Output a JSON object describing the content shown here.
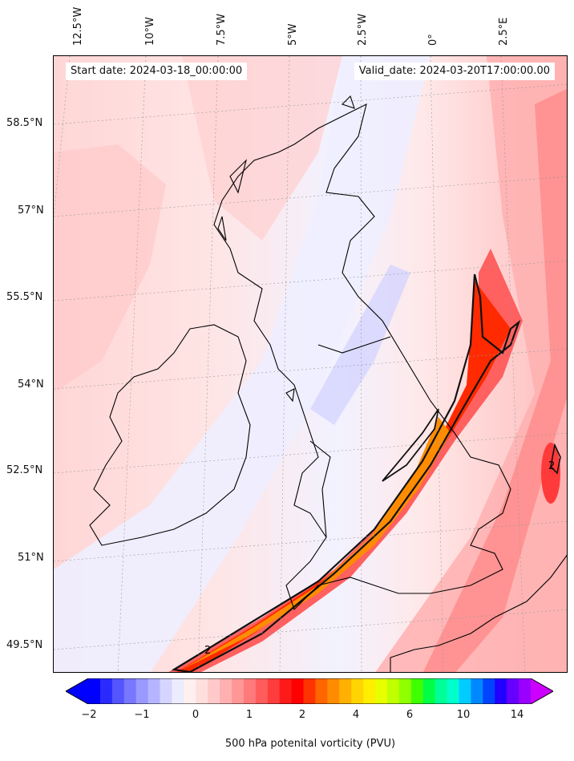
{
  "map": {
    "start_date": "Start date: 2024-03-18_00:00:00",
    "valid_date": "Valid_date: 2024-03-20T17:00:00.00",
    "field": "500 hPa potenital vorticity (PVU)",
    "contour_label": "2",
    "region": "British Isles and north-west Europe",
    "longitude_labels": [
      "12.5°W",
      "10°W",
      "7.5°W",
      "5°W",
      "2.5°W",
      "0°",
      "2.5°E"
    ],
    "latitude_labels": [
      "58.5°N",
      "57°N",
      "55.5°N",
      "54°N",
      "52.5°N",
      "51°N",
      "49.5°N"
    ]
  },
  "colorbar": {
    "tick_labels": [
      "−2",
      "−1",
      "0",
      "1",
      "2",
      "4",
      "6",
      "10",
      "14"
    ],
    "colors": [
      "#0000ff",
      "#2a2aff",
      "#5555ff",
      "#7777ff",
      "#9999ff",
      "#b5b5ff",
      "#d5d5ff",
      "#ececff",
      "#ffefef",
      "#ffdede",
      "#ffc9c9",
      "#ffb0b0",
      "#ff9797",
      "#ff7a7a",
      "#ff5c5c",
      "#ff3d3d",
      "#ff1a1a",
      "#ff0000",
      "#ff3300",
      "#ff6600",
      "#ff8c00",
      "#ffb000",
      "#ffd400",
      "#ffee00",
      "#e8ff00",
      "#c0ff00",
      "#90ff00",
      "#40ff00",
      "#00ff44",
      "#00ff99",
      "#00ffcc",
      "#00ccff",
      "#0088ff",
      "#0044ff",
      "#2200ff",
      "#6600ff",
      "#9900ff"
    ],
    "under_color": "#0000ff",
    "over_color": "#cc00ff"
  }
}
